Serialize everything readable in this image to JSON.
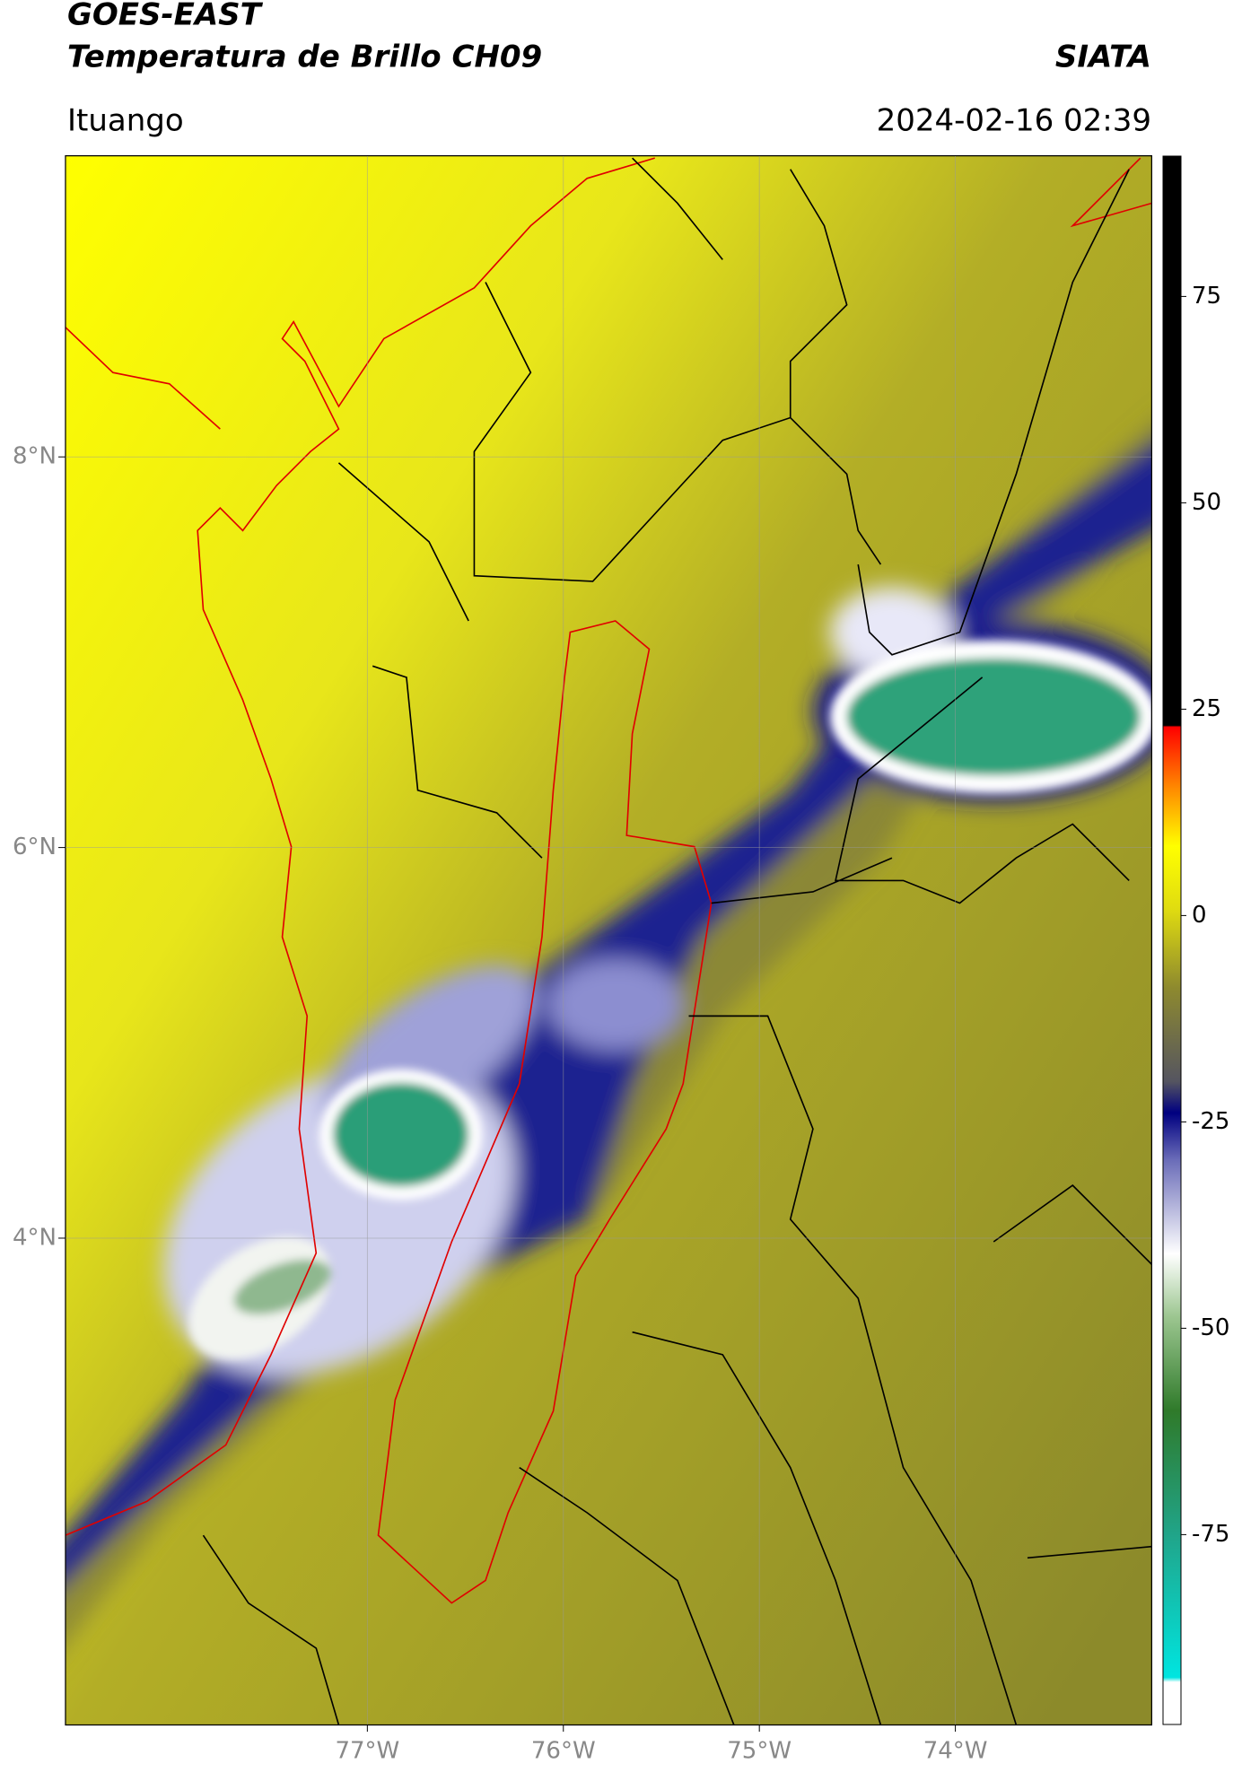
{
  "header": {
    "title": "GOES-EAST",
    "subtitle": "Temperatura de Brillo CH09",
    "agency": "SIATA",
    "location": "Ituango",
    "datetime": "2024-02-16 02:39"
  },
  "map": {
    "lonlim": [
      -78.54,
      -73.0
    ],
    "latlim": [
      1.51,
      9.54
    ],
    "lonticks": [
      {
        "value": -77,
        "label": "77°W"
      },
      {
        "value": -76,
        "label": "76°W"
      },
      {
        "value": -75,
        "label": "75°W"
      },
      {
        "value": -74,
        "label": "74°W"
      }
    ],
    "latticks": [
      {
        "value": 8,
        "label": "8°N"
      },
      {
        "value": 6,
        "label": "6°N"
      },
      {
        "value": 4,
        "label": "4°N"
      }
    ]
  },
  "colorbar": {
    "lim": [
      -98,
      92
    ],
    "ticks": [
      75,
      50,
      25,
      0,
      -25,
      -50,
      -75
    ]
  }
}
